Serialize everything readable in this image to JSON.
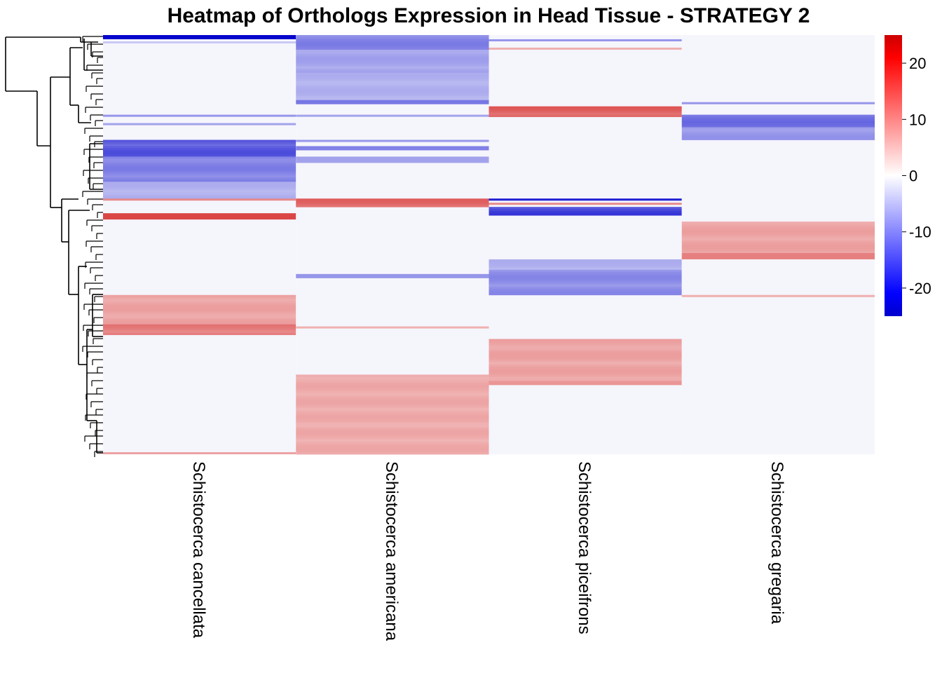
{
  "chart_data": {
    "type": "heatmap",
    "title": "Heatmap of Orthologs Expression in Head Tissue - STRATEGY 2",
    "columns": [
      "Schistocerca cancellata",
      "Schistocerca americana",
      "Schistocerca piceifrons",
      "Schistocerca gregaria"
    ],
    "colorbar": {
      "range": [
        -25,
        25
      ],
      "ticks": [
        20,
        10,
        0,
        -10,
        -20
      ],
      "tick_labels": [
        "20",
        "10",
        "0",
        "-10",
        "-20"
      ],
      "low_color": "#0000cc",
      "mid_color": "#ffffff",
      "high_color": "#cc0000",
      "background_color": "#f5f5fc"
    },
    "row_count": 200,
    "row_blocks": {
      "Schistocerca cancellata": [
        {
          "from": 0,
          "to": 2,
          "value": -24
        },
        {
          "from": 3,
          "to": 4,
          "value": -1.5
        },
        {
          "from": 38,
          "to": 39,
          "value": -5
        },
        {
          "from": 42,
          "to": 43,
          "value": -4
        },
        {
          "from": 50,
          "to": 58,
          "value": -12
        },
        {
          "from": 58,
          "to": 70,
          "value": -7
        },
        {
          "from": 70,
          "to": 78,
          "value": -3
        },
        {
          "from": 78,
          "to": 79,
          "value": 6
        },
        {
          "from": 85,
          "to": 88,
          "value": 14
        },
        {
          "from": 124,
          "to": 138,
          "value": 4
        },
        {
          "from": 138,
          "to": 143,
          "value": 8
        },
        {
          "from": 199,
          "to": 200,
          "value": 4
        }
      ],
      "Schistocerca americana": [
        {
          "from": 0,
          "to": 7,
          "value": -7
        },
        {
          "from": 7,
          "to": 18,
          "value": -4
        },
        {
          "from": 18,
          "to": 31,
          "value": -3
        },
        {
          "from": 31,
          "to": 33,
          "value": -8
        },
        {
          "from": 38,
          "to": 39,
          "value": -4
        },
        {
          "from": 50,
          "to": 51,
          "value": -5
        },
        {
          "from": 53,
          "to": 55,
          "value": -7
        },
        {
          "from": 58,
          "to": 61,
          "value": -4
        },
        {
          "from": 78,
          "to": 82,
          "value": 10
        },
        {
          "from": 114,
          "to": 116,
          "value": -5
        },
        {
          "from": 139,
          "to": 140,
          "value": 3
        },
        {
          "from": 162,
          "to": 200,
          "value": 3.5
        }
      ],
      "Schistocerca piceifrons": [
        {
          "from": 2,
          "to": 3,
          "value": -5
        },
        {
          "from": 6,
          "to": 7,
          "value": 3
        },
        {
          "from": 34,
          "to": 39,
          "value": 11
        },
        {
          "from": 78,
          "to": 79,
          "value": -20
        },
        {
          "from": 80,
          "to": 81,
          "value": 6
        },
        {
          "from": 82,
          "to": 86,
          "value": -15
        },
        {
          "from": 107,
          "to": 112,
          "value": -3
        },
        {
          "from": 112,
          "to": 124,
          "value": -6
        },
        {
          "from": 145,
          "to": 165,
          "value": 4
        },
        {
          "from": 165,
          "to": 167,
          "value": 5
        }
      ],
      "Schistocerca gregaria": [
        {
          "from": 32,
          "to": 33,
          "value": -5
        },
        {
          "from": 38,
          "to": 44,
          "value": -9
        },
        {
          "from": 44,
          "to": 50,
          "value": -5
        },
        {
          "from": 89,
          "to": 104,
          "value": 4
        },
        {
          "from": 104,
          "to": 107,
          "value": 7
        },
        {
          "from": 124,
          "to": 125,
          "value": 3
        }
      ]
    },
    "dendrogram": "row"
  }
}
